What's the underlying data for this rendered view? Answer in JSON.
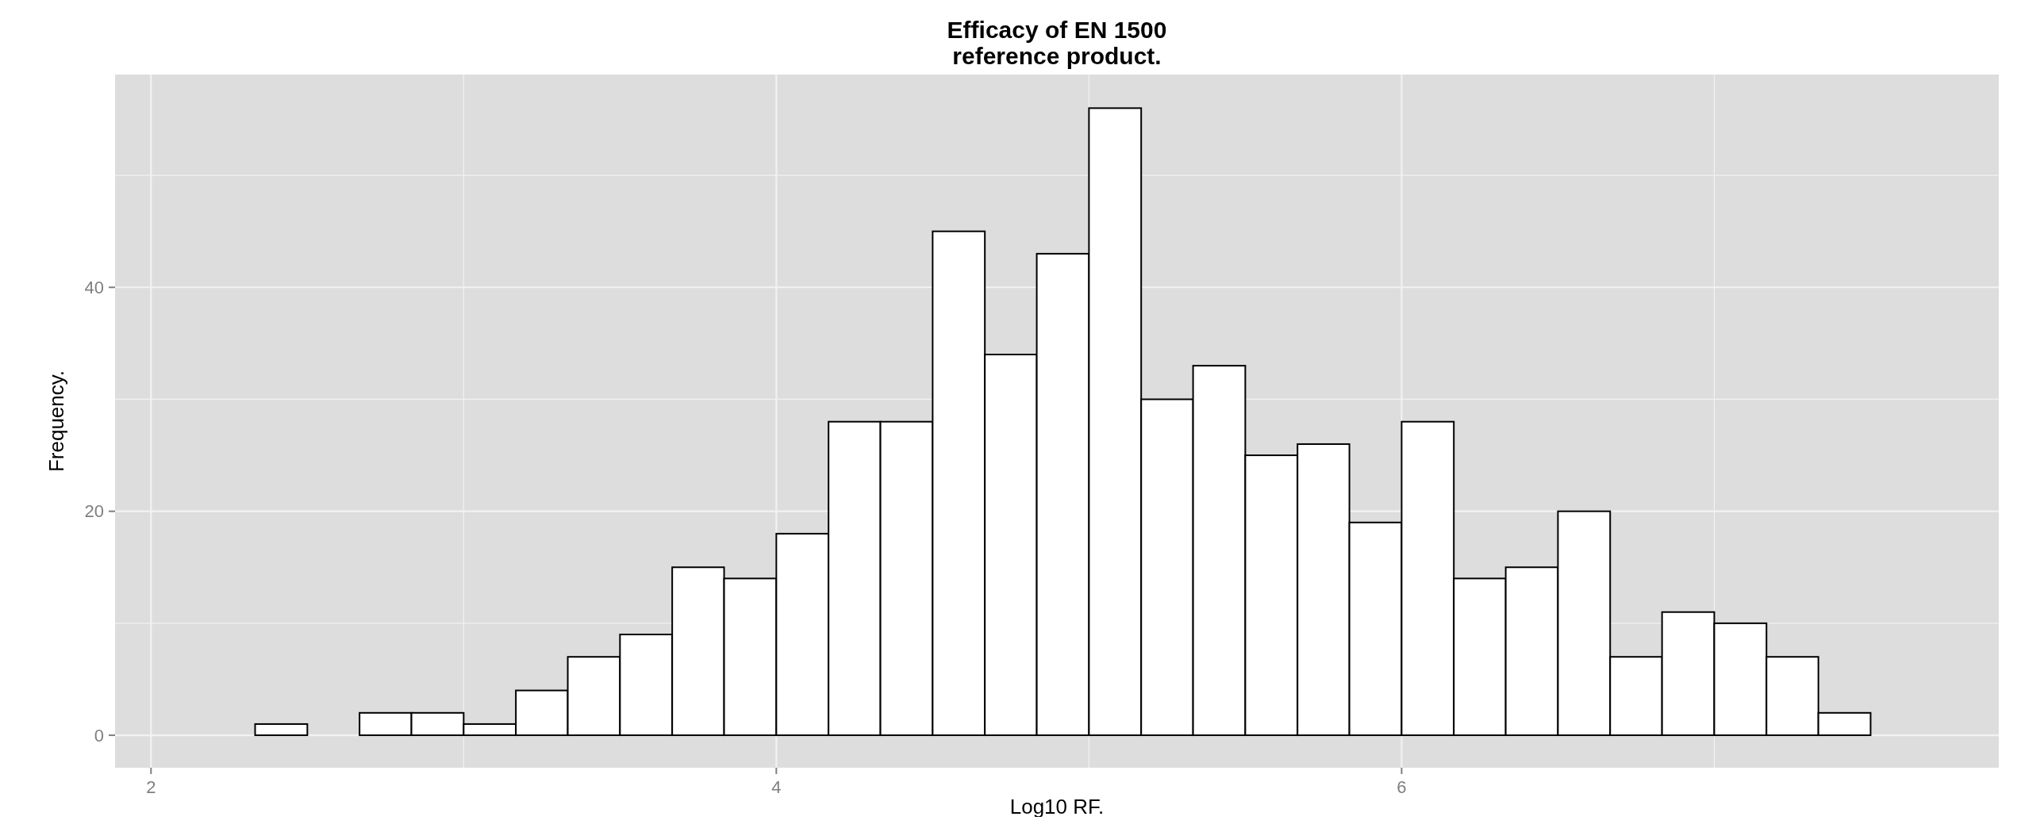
{
  "chart_data": {
    "type": "histogram",
    "title": "Efficacy of EN 1500\nreference product.",
    "xlabel": "Log10 RF.",
    "ylabel": "Frequency.",
    "bins": [
      2.167,
      2.333,
      2.5,
      2.667,
      2.833,
      3,
      3.167,
      3.333,
      3.5,
      3.667,
      3.833,
      4,
      4.167,
      4.333,
      4.5,
      4.667,
      4.833,
      5,
      5.167,
      5.333,
      5.5,
      5.667,
      5.833,
      6,
      6.167,
      6.333,
      6.5,
      6.667,
      6.833,
      7,
      7.167,
      7.333,
      7.5,
      7.667
    ],
    "values": [
      0,
      1,
      0,
      2,
      2,
      1,
      4,
      7,
      9,
      15,
      14,
      18,
      28,
      28,
      45,
      34,
      43,
      56,
      30,
      33,
      25,
      26,
      19,
      28,
      14,
      15,
      20,
      7,
      11,
      10,
      7,
      2,
      0
    ],
    "color": "#ffffff",
    "xlim": [
      1.885,
      7.91
    ],
    "ylim": [
      -2.9,
      59
    ],
    "xticks": [
      2,
      {
        "value": 3,
        "label": null
      },
      4,
      {
        "value": 5,
        "label": null
      },
      6,
      {
        "value": 7,
        "label": null
      }
    ],
    "yticks": [
      0,
      {
        "value": 10,
        "label": null
      },
      20,
      {
        "value": 30,
        "label": null
      },
      40,
      {
        "value": 50,
        "label": null
      }
    ],
    "grid": true
  }
}
